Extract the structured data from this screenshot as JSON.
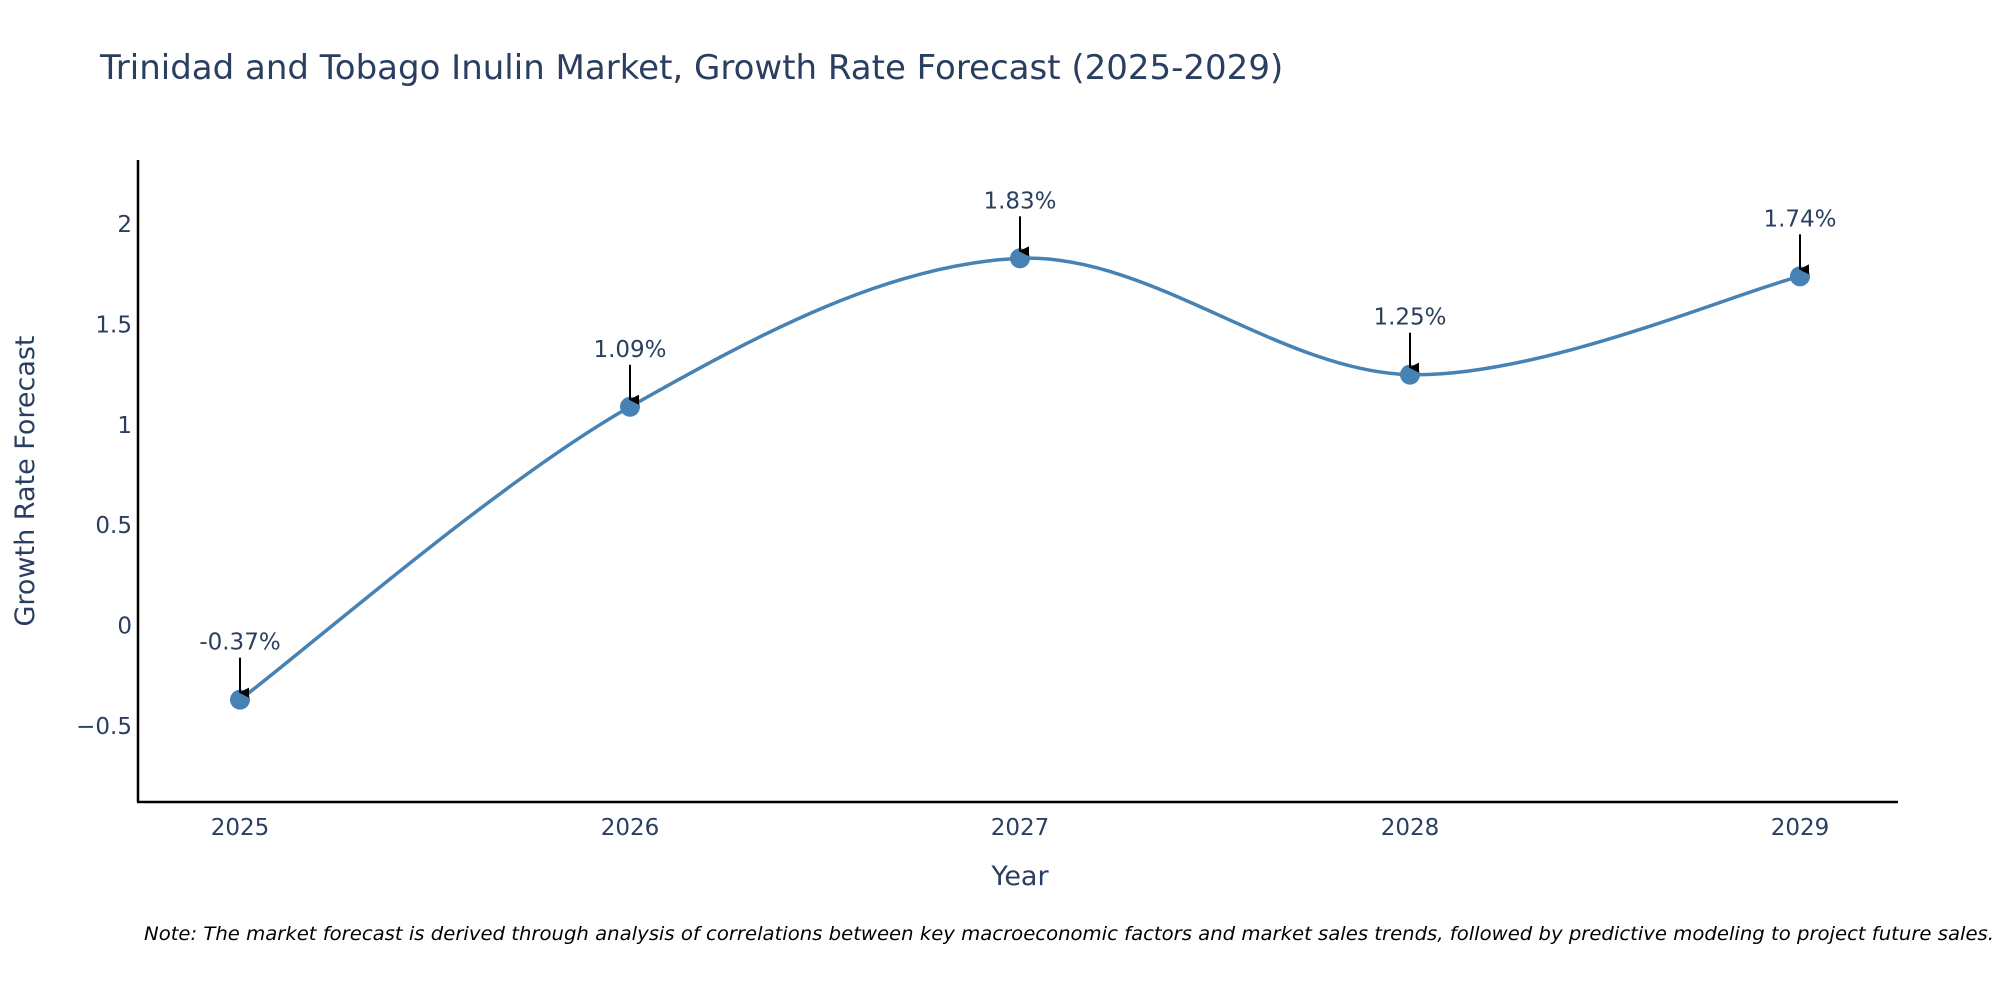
{
  "chart_data": {
    "type": "line",
    "title": "Trinidad and Tobago Inulin Market, Growth Rate Forecast (2025-2029)",
    "xlabel": "Year",
    "ylabel": "Growth Rate Forecast",
    "categories": [
      "2025",
      "2026",
      "2027",
      "2028",
      "2029"
    ],
    "values": [
      -0.37,
      1.09,
      1.83,
      1.25,
      1.74
    ],
    "data_labels": [
      "-0.37%",
      "1.09%",
      "1.83%",
      "1.25%",
      "1.74%"
    ],
    "ylim": [
      -0.88,
      2.32
    ],
    "yticks": [
      -0.5,
      0,
      0.5,
      1,
      1.5,
      2
    ],
    "ytick_labels": [
      "−0.5",
      "0",
      "0.5",
      "1",
      "1.5",
      "2"
    ],
    "grid": false,
    "line_shape": "spline",
    "line_color": "#4682b4",
    "marker_color": "#4682b4",
    "arrow_color": "#000000",
    "note": "Note: The market forecast is derived through analysis of correlations between key macroeconomic factors and market sales trends, followed by predictive modeling to project future sales."
  }
}
